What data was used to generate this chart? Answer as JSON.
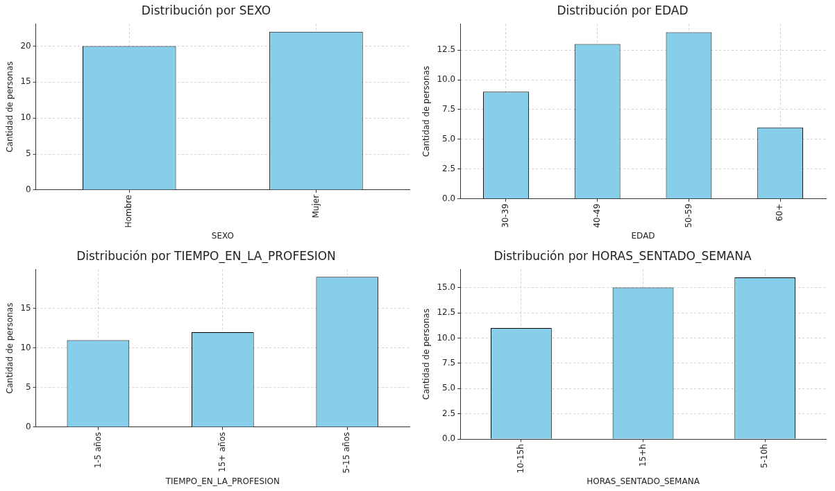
{
  "chart_data": [
    {
      "type": "bar",
      "title": "Distribución por SEXO",
      "xlabel": "SEXO",
      "ylabel": "Cantidad de personas",
      "categories": [
        "Hombre",
        "Mujer"
      ],
      "values": [
        20,
        22
      ],
      "color": "#87ceeb",
      "ylim": [
        0,
        23.1
      ],
      "yticks": [
        0,
        5,
        10,
        15,
        20
      ],
      "grid": true
    },
    {
      "type": "bar",
      "title": "Distribución por EDAD",
      "xlabel": "EDAD",
      "ylabel": "Cantidad de personas",
      "categories": [
        "30-39",
        "40-49",
        "50-59",
        "60+"
      ],
      "values": [
        9,
        13,
        14,
        6
      ],
      "color": "#87ceeb",
      "ylim": [
        0,
        14.7
      ],
      "yticks": [
        {
          "value": 0,
          "label": "0.0"
        },
        {
          "value": 2.5,
          "label": "2.5"
        },
        {
          "value": 5,
          "label": "5.0"
        },
        {
          "value": 7.5,
          "label": "7.5"
        },
        {
          "value": 10,
          "label": "10.0"
        },
        {
          "value": 12.5,
          "label": "12.5"
        }
      ],
      "grid": true
    },
    {
      "type": "bar",
      "title": "Distribución por TIEMPO_EN_LA_PROFESION",
      "xlabel": "TIEMPO_EN_LA_PROFESION",
      "ylabel": "Cantidad de personas",
      "categories": [
        "1-5 años",
        "15+ años",
        "5-15 años"
      ],
      "values": [
        11,
        12,
        19
      ],
      "color": "#87ceeb",
      "ylim": [
        0,
        19.95
      ],
      "yticks": [
        0,
        5,
        10,
        15
      ],
      "grid": true
    },
    {
      "type": "bar",
      "title": "Distribución por HORAS_SENTADO_SEMANA",
      "xlabel": "HORAS_SENTADO_SEMANA",
      "ylabel": "Cantidad de personas",
      "categories": [
        "10-15h",
        "15+h",
        "5-10h"
      ],
      "values": [
        11,
        15,
        16
      ],
      "color": "#87ceeb",
      "ylim": [
        0,
        16.8
      ],
      "yticks": [
        {
          "value": 0,
          "label": "0.0"
        },
        {
          "value": 2.5,
          "label": "2.5"
        },
        {
          "value": 5,
          "label": "5.0"
        },
        {
          "value": 7.5,
          "label": "7.5"
        },
        {
          "value": 10,
          "label": "10.0"
        },
        {
          "value": 12.5,
          "label": "12.5"
        },
        {
          "value": 15,
          "label": "15.0"
        }
      ],
      "grid": true
    }
  ]
}
